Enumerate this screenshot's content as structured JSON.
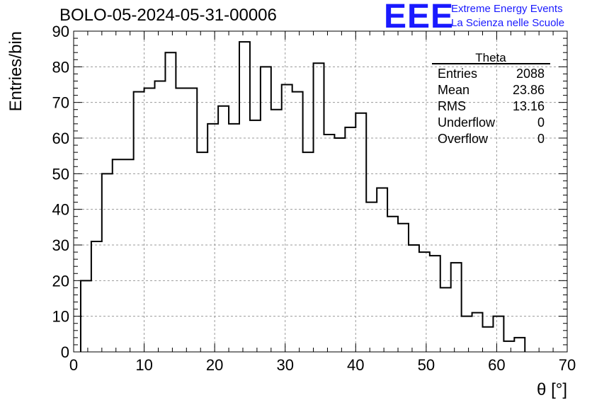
{
  "header": {
    "title": "BOLO-05-2024-05-31-00006",
    "logo": "EEE",
    "logo_line1": "Extreme Energy Events",
    "logo_line2": "La Scienza nelle Scuole"
  },
  "stats": {
    "name": "Theta",
    "rows": [
      {
        "label": "Entries",
        "value": "2088"
      },
      {
        "label": "Mean",
        "value": "23.86"
      },
      {
        "label": "RMS",
        "value": "13.16"
      },
      {
        "label": "Underflow",
        "value": "0"
      },
      {
        "label": "Overflow",
        "value": "0"
      }
    ]
  },
  "colors": {
    "logo": "#1a1aff",
    "line": "#000000",
    "grid": "#9a9a9a"
  },
  "chart_data": {
    "type": "bar",
    "histogram": true,
    "bin_width": 1.5,
    "x_start": 1,
    "values": [
      20,
      31,
      50,
      54,
      54,
      73,
      74,
      76,
      84,
      74,
      74,
      56,
      64,
      69,
      64,
      87,
      65,
      80,
      68,
      75,
      73,
      56,
      81,
      61,
      60,
      63,
      67,
      42,
      46,
      38,
      36,
      30,
      28,
      27,
      18,
      25,
      10,
      11,
      7,
      10,
      3,
      4
    ],
    "xlabel": "θ [°]",
    "ylabel": "Entries/bin",
    "xlim": [
      0,
      70
    ],
    "ylim": [
      0,
      90
    ],
    "xticks": [
      "0",
      "10",
      "20",
      "30",
      "40",
      "50",
      "60",
      "70"
    ],
    "yticks": [
      "0",
      "10",
      "20",
      "30",
      "40",
      "50",
      "60",
      "70",
      "80",
      "90"
    ],
    "grid": true
  }
}
